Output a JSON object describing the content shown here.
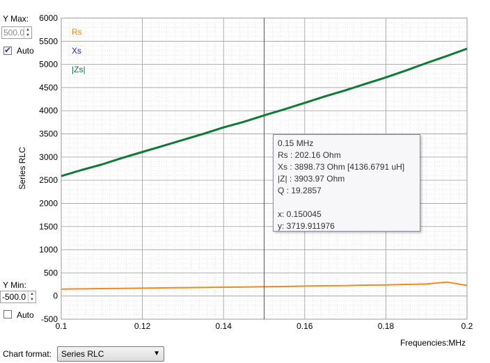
{
  "controls": {
    "ymax_label": "Y Max:",
    "ymax_value": "500.0",
    "ymax_auto_label": "Auto",
    "ymax_auto_checked": true,
    "ymin_label": "Y Min:",
    "ymin_value": "-500.0",
    "ymin_auto_label": "Auto",
    "ymin_auto_checked": false,
    "chart_format_label": "Chart format:",
    "chart_format_value": "Series RLC"
  },
  "tooltip": {
    "freq": "0.15 MHz",
    "rs": "Rs :  202.16 Ohm",
    "xs": "Xs :  3898.73 Ohm [4136.6791 uH]",
    "z": "|Z| :  3903.97 Ohm",
    "q": "Q :  19.2857",
    "x": "x: 0.150045",
    "y": "y: 3719.911976"
  },
  "colors": {
    "rs": "#f08a1c",
    "xs": "#1f1fc8",
    "zs": "#0d7a35",
    "cursor": "#cc2222"
  },
  "chart_data": {
    "type": "line",
    "xlabel": "Frequencies:MHz",
    "ylabel": "Series RLC",
    "xlim": [
      0.1,
      0.2
    ],
    "ylim": [
      -500,
      6000
    ],
    "x_ticks": [
      "0.1",
      "0.12",
      "0.14",
      "0.16",
      "0.18",
      "0.2"
    ],
    "y_ticks": [
      "-500",
      "0",
      "500",
      "1000",
      "1500",
      "2000",
      "2500",
      "3000",
      "3500",
      "4000",
      "4500",
      "5000",
      "5500",
      "6000"
    ],
    "cursor_x": 0.15,
    "legend": [
      "Rs",
      "Xs",
      "|Zs|"
    ],
    "legend_placement": "top-left",
    "grid": true,
    "series": [
      {
        "name": "|Zs|",
        "x": [
          0.1,
          0.105,
          0.11,
          0.115,
          0.12,
          0.125,
          0.13,
          0.135,
          0.14,
          0.145,
          0.15,
          0.155,
          0.16,
          0.165,
          0.17,
          0.175,
          0.18,
          0.185,
          0.19,
          0.195,
          0.2
        ],
        "y": [
          2590,
          2720,
          2840,
          2980,
          3110,
          3240,
          3370,
          3500,
          3640,
          3760,
          3900,
          4030,
          4170,
          4310,
          4440,
          4580,
          4720,
          4870,
          5030,
          5180,
          5340
        ]
      },
      {
        "name": "Rs",
        "x": [
          0.1,
          0.105,
          0.11,
          0.115,
          0.12,
          0.125,
          0.13,
          0.135,
          0.14,
          0.145,
          0.15,
          0.155,
          0.16,
          0.165,
          0.17,
          0.175,
          0.18,
          0.185,
          0.19,
          0.195,
          0.2
        ],
        "y": [
          150,
          155,
          160,
          165,
          170,
          175,
          180,
          185,
          190,
          195,
          202,
          205,
          215,
          220,
          225,
          235,
          240,
          250,
          260,
          300,
          230
        ]
      }
    ]
  }
}
